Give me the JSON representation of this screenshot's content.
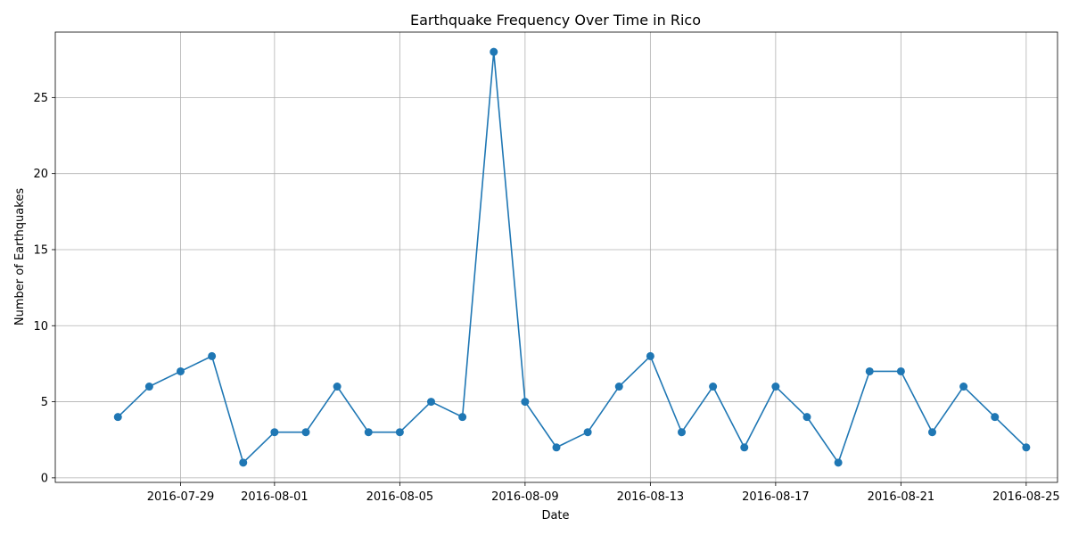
{
  "chart_data": {
    "type": "line",
    "title": "Earthquake Frequency Over Time in Rico",
    "xlabel": "Date",
    "ylabel": "Number of Earthquakes",
    "x_type": "date",
    "xlim": [
      "2016-07-25",
      "2016-08-26"
    ],
    "ylim": [
      -0.3,
      29.3
    ],
    "x_ticks": [
      "2016-07-29",
      "2016-08-01",
      "2016-08-05",
      "2016-08-09",
      "2016-08-13",
      "2016-08-17",
      "2016-08-21",
      "2016-08-25"
    ],
    "y_ticks": [
      0,
      5,
      10,
      15,
      20,
      25
    ],
    "grid": true,
    "series": [
      {
        "color": "#1f77b4",
        "marker": "circle",
        "points": [
          {
            "x": "2016-07-27",
            "y": 4
          },
          {
            "x": "2016-07-28",
            "y": 6
          },
          {
            "x": "2016-07-29",
            "y": 7
          },
          {
            "x": "2016-07-30",
            "y": 8
          },
          {
            "x": "2016-07-31",
            "y": 1
          },
          {
            "x": "2016-08-01",
            "y": 3
          },
          {
            "x": "2016-08-02",
            "y": 3
          },
          {
            "x": "2016-08-03",
            "y": 6
          },
          {
            "x": "2016-08-04",
            "y": 3
          },
          {
            "x": "2016-08-05",
            "y": 3
          },
          {
            "x": "2016-08-06",
            "y": 5
          },
          {
            "x": "2016-08-07",
            "y": 4
          },
          {
            "x": "2016-08-08",
            "y": 28
          },
          {
            "x": "2016-08-09",
            "y": 5
          },
          {
            "x": "2016-08-10",
            "y": 2
          },
          {
            "x": "2016-08-11",
            "y": 3
          },
          {
            "x": "2016-08-12",
            "y": 6
          },
          {
            "x": "2016-08-13",
            "y": 8
          },
          {
            "x": "2016-08-14",
            "y": 3
          },
          {
            "x": "2016-08-15",
            "y": 6
          },
          {
            "x": "2016-08-16",
            "y": 2
          },
          {
            "x": "2016-08-17",
            "y": 6
          },
          {
            "x": "2016-08-18",
            "y": 4
          },
          {
            "x": "2016-08-19",
            "y": 1
          },
          {
            "x": "2016-08-20",
            "y": 7
          },
          {
            "x": "2016-08-21",
            "y": 7
          },
          {
            "x": "2016-08-22",
            "y": 3
          },
          {
            "x": "2016-08-23",
            "y": 6
          },
          {
            "x": "2016-08-24",
            "y": 4
          },
          {
            "x": "2016-08-25",
            "y": 2
          }
        ]
      }
    ]
  }
}
